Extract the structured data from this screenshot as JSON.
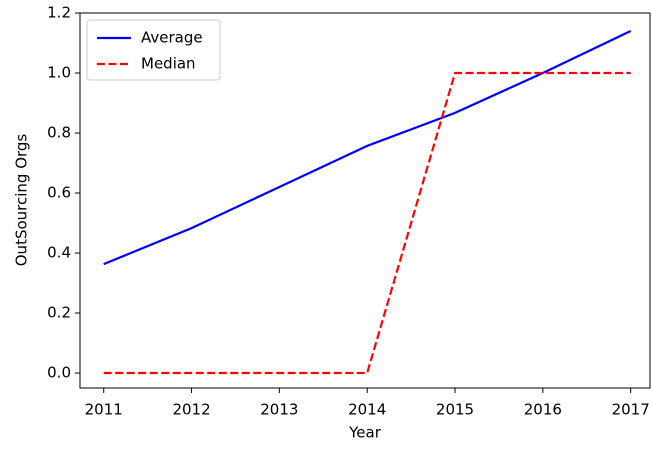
{
  "chart_data": {
    "type": "line",
    "x_label": "Year",
    "y_label": "OutSourcing Orgs",
    "x": [
      2011,
      2012,
      2013,
      2014,
      2015,
      2016,
      2017
    ],
    "series": [
      {
        "name": "Average",
        "color": "#0000ff",
        "dash": "solid",
        "values": [
          0.363,
          0.483,
          0.62,
          0.757,
          0.867,
          1.0,
          1.14
        ]
      },
      {
        "name": "Median",
        "color": "#ff0000",
        "dash": "dashed",
        "values": [
          0,
          0,
          0,
          0,
          1,
          1,
          1
        ]
      }
    ],
    "xlim": [
      2010.73,
      2017.22
    ],
    "xticks": [
      2011,
      2012,
      2013,
      2014,
      2015,
      2016,
      2017
    ],
    "ylim": [
      -0.05,
      1.2
    ],
    "yticks": [
      {
        "value": 0,
        "label": "0.0"
      },
      0.2,
      0.4,
      0.6,
      0.8,
      {
        "value": 1,
        "label": "1.0"
      },
      1.2
    ],
    "grid": false,
    "legend": "upper left"
  }
}
